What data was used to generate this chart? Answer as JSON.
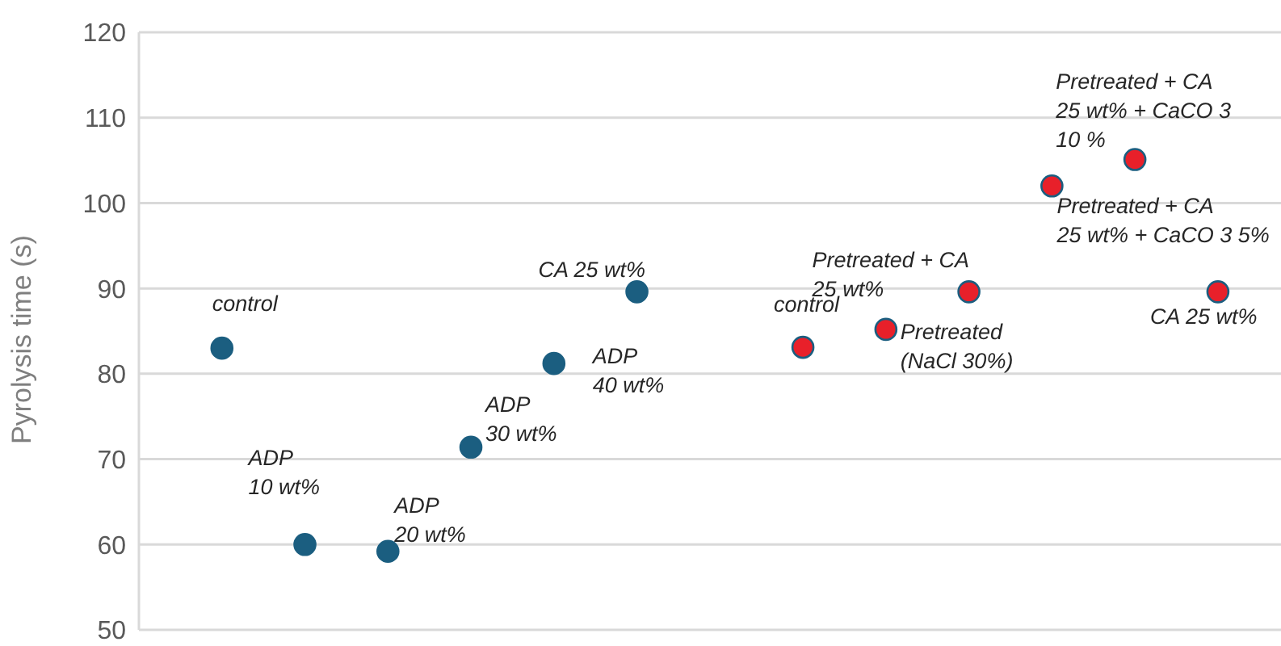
{
  "chart_data": {
    "type": "scatter",
    "ylabel": "Pyrolysis time (s)",
    "categories": [
      null,
      null,
      null,
      null,
      null,
      null,
      null,
      null,
      null,
      null,
      null,
      null,
      null
    ],
    "series": [
      {
        "color": "#1b5e80",
        "values": [
          83,
          60,
          59.2,
          71.4,
          81.2,
          89.6,
          null,
          null,
          null,
          null,
          null,
          null,
          null
        ],
        "value_labels": [
          "control",
          "ADP 10 wt%",
          "ADP 20 wt%",
          "ADP 30 wt%",
          "ADP 40 wt%",
          "CA 25 wt%",
          null,
          null,
          null,
          null,
          null,
          null,
          null
        ]
      },
      {
        "color": "#e8202a",
        "values": [
          null,
          null,
          null,
          null,
          null,
          null,
          null,
          83.1,
          85.2,
          89.6,
          102,
          105.1,
          89.6
        ],
        "value_labels": [
          null,
          null,
          null,
          null,
          null,
          null,
          null,
          "control",
          "Pretreated (NaCl 30%)",
          "Pretreated + CA 25 wt%",
          "Pretreated + CA 25 wt% + CaCO 3 5%",
          "Pretreated + CA 25 wt% + CaCO 3 10 %",
          "CA 25 wt%"
        ]
      }
    ],
    "ylim": [
      50,
      120
    ],
    "yticks": [
      50,
      60,
      70,
      80,
      90,
      100,
      110,
      120
    ],
    "grid": "y",
    "legend": false,
    "marker": "circle",
    "tick_labels": "y"
  }
}
